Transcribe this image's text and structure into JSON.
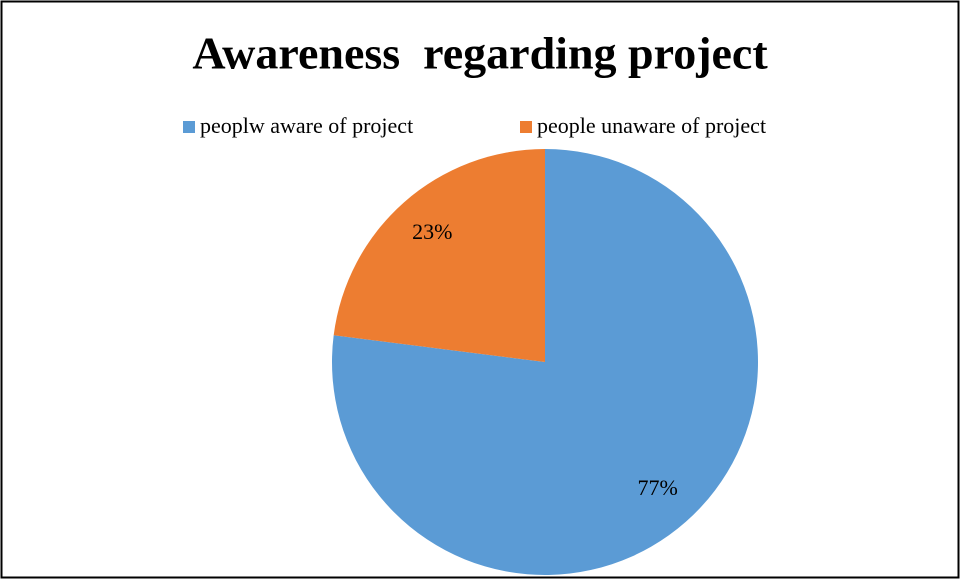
{
  "chart_data": {
    "type": "pie",
    "title": "Awareness  regarding project",
    "categories": [
      "peoplw aware of project",
      "people unaware of project"
    ],
    "values": [
      77,
      23
    ],
    "value_labels": [
      "77%",
      "23%"
    ],
    "colors": [
      "#5b9bd5",
      "#ed7d31"
    ],
    "legend": "top"
  }
}
